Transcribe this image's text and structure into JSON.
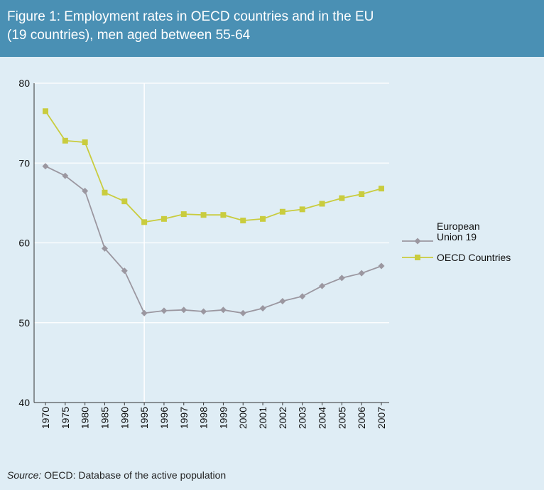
{
  "title": "Figure 1: Employment rates in OECD countries and in the EU\n(19 countries), men aged between 55-64",
  "source": {
    "prefix": "Source:",
    "text": " OECD: Database of the active population"
  },
  "chart_data": {
    "type": "line",
    "title": "Figure 1: Employment rates in OECD countries and in the EU (19 countries), men aged between 55-64",
    "xlabel": "",
    "ylabel": "",
    "categories": [
      "1970",
      "1975",
      "1980",
      "1985",
      "1990",
      "1995",
      "1996",
      "1997",
      "1998",
      "1999",
      "2000",
      "2001",
      "2002",
      "2003",
      "2004",
      "2005",
      "2006",
      "2007"
    ],
    "ylim": [
      40,
      80
    ],
    "yticks": [
      40,
      50,
      60,
      70,
      80
    ],
    "grid": true,
    "reference_line_at": "1995",
    "legend_position": "right",
    "series": [
      {
        "name": "European Union 19",
        "legend_lines": [
          "European",
          "Union 19"
        ],
        "marker": "diamond",
        "color": "#9b97a0",
        "values": [
          69.6,
          68.4,
          66.5,
          59.3,
          56.5,
          51.2,
          51.5,
          51.6,
          51.4,
          51.6,
          51.2,
          51.8,
          52.7,
          53.3,
          54.6,
          55.6,
          56.2,
          57.1
        ]
      },
      {
        "name": "OECD Countries",
        "legend_lines": [
          "OECD Countries"
        ],
        "marker": "square",
        "color": "#c9cc3e",
        "values": [
          76.5,
          72.8,
          72.6,
          66.3,
          65.2,
          62.6,
          63.0,
          63.6,
          63.5,
          63.5,
          62.8,
          63.0,
          63.9,
          64.2,
          64.9,
          65.6,
          66.1,
          66.8
        ]
      }
    ]
  }
}
